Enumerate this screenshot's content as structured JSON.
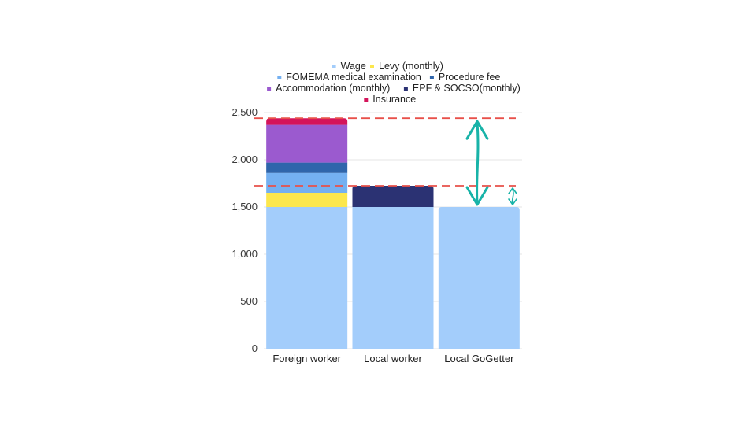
{
  "chart_data": {
    "type": "bar",
    "stacked": true,
    "categories": [
      "Foreign worker",
      "Local worker",
      "Local GoGetter"
    ],
    "series": [
      {
        "name": "Wage",
        "color": "#a3cdfb",
        "values": [
          1500,
          1500,
          1500
        ]
      },
      {
        "name": "Levy (monthly)",
        "color": "#fce74d",
        "values": [
          150,
          0,
          0
        ]
      },
      {
        "name": "FOMEMA medical examination",
        "color": "#74b0f1",
        "values": [
          210,
          0,
          0
        ]
      },
      {
        "name": "Procedure fee",
        "color": "#2f65ab",
        "values": [
          110,
          0,
          0
        ]
      },
      {
        "name": "Accommodation (monthly)",
        "color": "#9b5acf",
        "values": [
          400,
          0,
          0
        ]
      },
      {
        "name": "EPF & SOCSO(monthly)",
        "color": "#2b3273",
        "values": [
          0,
          225,
          0
        ]
      },
      {
        "name": "Insurance",
        "color": "#d4145a",
        "values": [
          70,
          0,
          0
        ]
      }
    ],
    "yticks": [
      "0",
      "500",
      "1,000",
      "1,500",
      "2,000",
      "2,500"
    ],
    "ylim": [
      0,
      2500
    ],
    "grid": true,
    "legend": "top",
    "reference_lines": [
      {
        "value": 2440,
        "color": "#e8504a",
        "style": "dashed"
      },
      {
        "value": 1725,
        "color": "#e8504a",
        "style": "dashed"
      }
    ],
    "annotations": [
      {
        "type": "double-arrow",
        "from": 2440,
        "to": 1500,
        "color": "#18b3a8"
      },
      {
        "type": "double-arrow",
        "from": 1725,
        "to": 1500,
        "color": "#18b3a8"
      }
    ]
  }
}
